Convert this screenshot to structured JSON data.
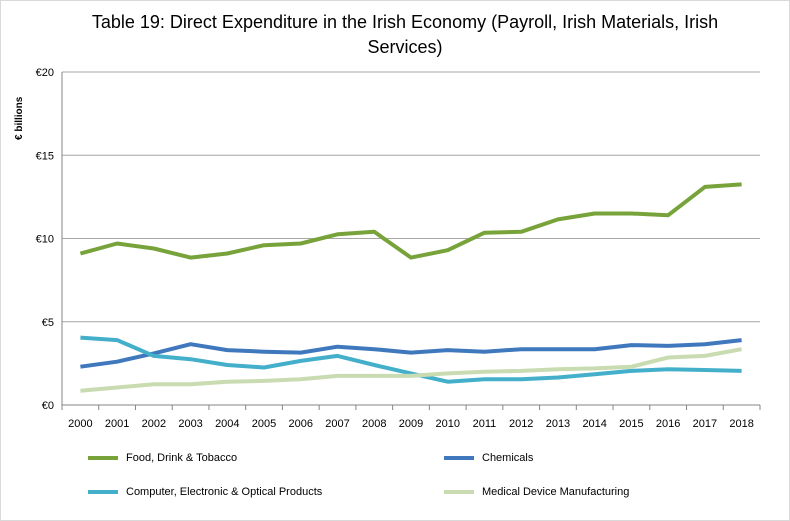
{
  "chart_data": {
    "type": "line",
    "title": "Table 19: Direct Expenditure in the Irish Economy  (Payroll, Irish Materials, Irish Services)",
    "xlabel": "",
    "ylabel": "€ billions",
    "ylim": [
      0,
      20
    ],
    "yticks": [
      "€0",
      "€5",
      "€10",
      "€15",
      "€20"
    ],
    "ytick_values": [
      0,
      5,
      10,
      15,
      20
    ],
    "grid": true,
    "legend_position": "bottom",
    "categories": [
      "2000",
      "2001",
      "2002",
      "2003",
      "2004",
      "2005",
      "2006",
      "2007",
      "2008",
      "2009",
      "2010",
      "2011",
      "2012",
      "2013",
      "2014",
      "2015",
      "2016",
      "2017",
      "2018"
    ],
    "series": [
      {
        "name": "Food, Drink & Tobacco",
        "color": "#77a33a",
        "values": [
          9.1,
          9.7,
          9.4,
          8.85,
          9.1,
          9.6,
          9.7,
          10.25,
          10.4,
          8.85,
          9.3,
          10.35,
          10.4,
          11.15,
          11.5,
          11.5,
          11.4,
          13.1,
          13.25
        ]
      },
      {
        "name": "Chemicals",
        "color": "#3f78bd",
        "values": [
          2.3,
          2.6,
          3.1,
          3.65,
          3.3,
          3.2,
          3.15,
          3.5,
          3.35,
          3.15,
          3.3,
          3.2,
          3.35,
          3.35,
          3.35,
          3.6,
          3.55,
          3.65,
          3.9
        ]
      },
      {
        "name": "Computer, Electronic & Optical Products",
        "color": "#43afcb",
        "values": [
          4.05,
          3.9,
          2.95,
          2.75,
          2.4,
          2.25,
          2.65,
          2.95,
          2.4,
          1.9,
          1.4,
          1.55,
          1.55,
          1.65,
          1.85,
          2.05,
          2.15,
          2.1,
          2.05
        ]
      },
      {
        "name": "Medical Device Manufacturing",
        "color": "#c9dbb0",
        "values": [
          0.85,
          1.05,
          1.25,
          1.25,
          1.4,
          1.45,
          1.55,
          1.75,
          1.75,
          1.75,
          1.9,
          2.0,
          2.05,
          2.15,
          2.2,
          2.3,
          2.85,
          2.95,
          3.35
        ]
      }
    ]
  }
}
